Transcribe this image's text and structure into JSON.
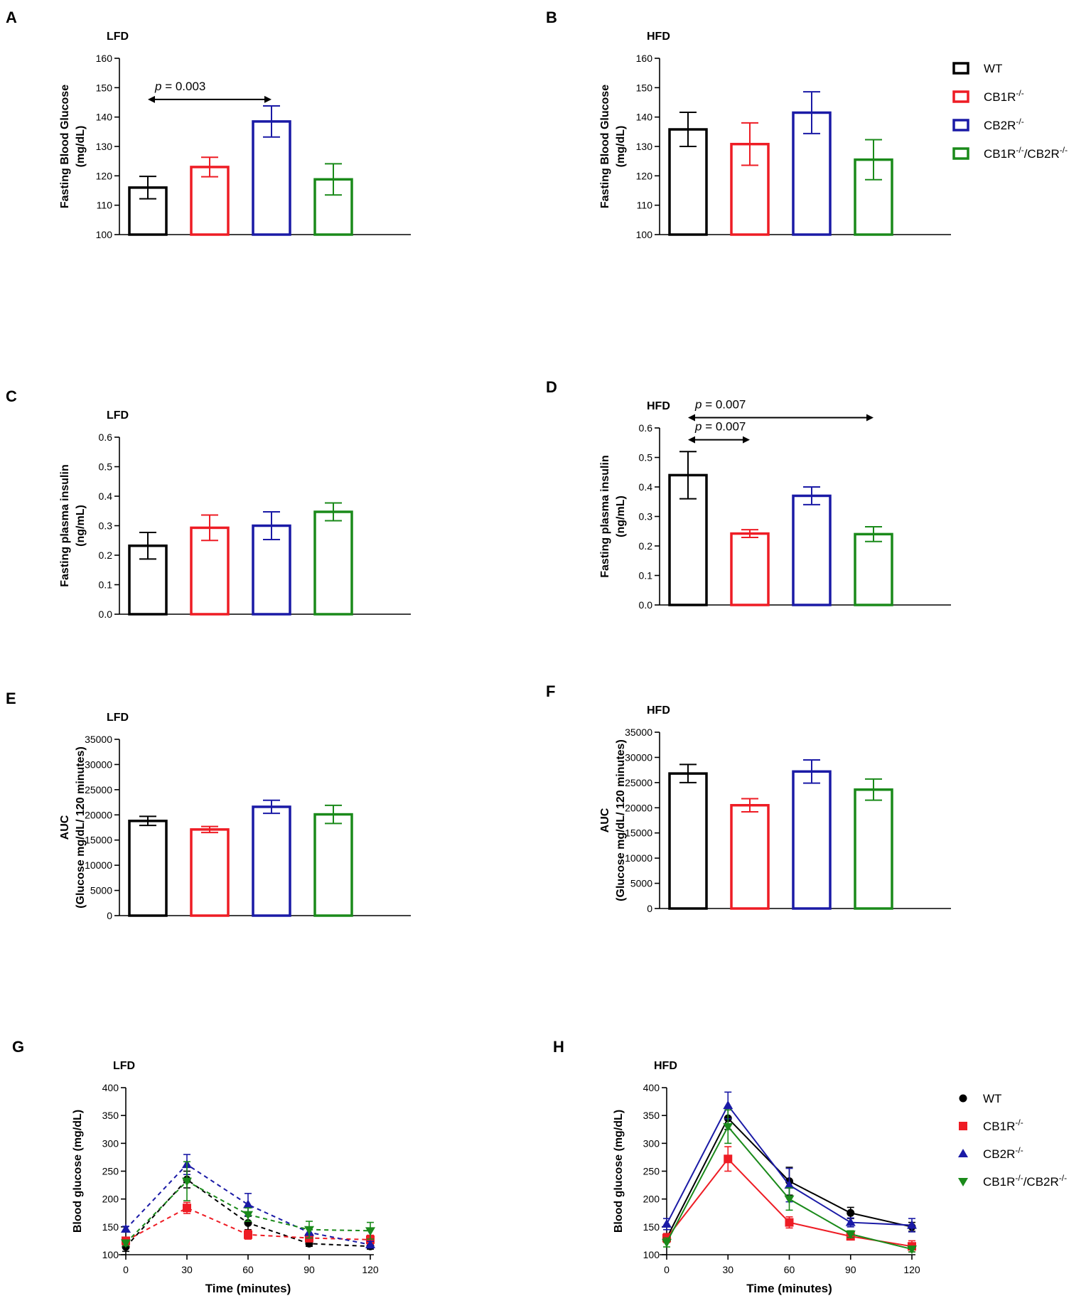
{
  "legend_bar": [
    {
      "key": "WT",
      "label": "WT",
      "sup": "",
      "label2": "",
      "sup2": "",
      "color": "#000000"
    },
    {
      "key": "CB1R",
      "label": "CB1R",
      "sup": "-/-",
      "label2": "",
      "sup2": "",
      "color": "#ee1c24"
    },
    {
      "key": "CB2R",
      "label": "CB2R",
      "sup": "-/-",
      "label2": "",
      "sup2": "",
      "color": "#1a1aa6"
    },
    {
      "key": "DKO",
      "label": "CB1R",
      "sup": "-/-",
      "label2": "/CB2R",
      "sup2": "-/-",
      "color": "#1a8a1a"
    }
  ],
  "legend_line": [
    {
      "key": "WT",
      "marker": "circle",
      "label": "WT",
      "sup": "",
      "label2": "",
      "sup2": "",
      "color": "#000000"
    },
    {
      "key": "CB1R",
      "marker": "square",
      "label": "CB1R",
      "sup": "-/-",
      "label2": "",
      "sup2": "",
      "color": "#ee1c24"
    },
    {
      "key": "CB2R",
      "marker": "triangle",
      "label": "CB2R",
      "sup": "-/-",
      "label2": "",
      "sup2": "",
      "color": "#1a1aa6"
    },
    {
      "key": "DKO",
      "marker": "triangle-down",
      "label": "CB1R",
      "sup": "-/-",
      "label2": "/CB2R",
      "sup2": "-/-",
      "color": "#1a8a1a"
    }
  ],
  "chart_data": [
    {
      "id": "A",
      "panel_letter": "A",
      "type": "bar",
      "title": "LFD",
      "ylabel": [
        "Fasting Blood Glucose",
        "(mg/dL)"
      ],
      "ylim": [
        100,
        160
      ],
      "yticks": [
        "100",
        "110",
        "120",
        "130",
        "140",
        "150",
        "160"
      ],
      "series_keys": [
        "WT",
        "CB1R",
        "CB2R",
        "DKO"
      ],
      "values": [
        116,
        123,
        138.5,
        118.8
      ],
      "errors": [
        3.8,
        3.3,
        5.3,
        5.3
      ],
      "annotations": [
        {
          "from": 0,
          "to": 2,
          "y": 146,
          "p_label": "p",
          "p_value": " = 0.003"
        }
      ]
    },
    {
      "id": "B",
      "panel_letter": "B",
      "type": "bar",
      "title": "HFD",
      "ylabel": [
        "Fasting Blood Glucose",
        "(mg/dL)"
      ],
      "ylim": [
        100,
        160
      ],
      "yticks": [
        "100",
        "110",
        "120",
        "130",
        "140",
        "150",
        "160"
      ],
      "series_keys": [
        "WT",
        "CB1R",
        "CB2R",
        "DKO"
      ],
      "values": [
        135.8,
        130.8,
        141.5,
        125.5
      ],
      "errors": [
        5.8,
        7.2,
        7.1,
        6.8
      ],
      "annotations": []
    },
    {
      "id": "C",
      "panel_letter": "C",
      "type": "bar",
      "title": "LFD",
      "ylabel": [
        "Fasting plasma insulin",
        "(ng/mL)"
      ],
      "ylim": [
        0,
        0.6
      ],
      "yticks": [
        "0.0",
        "0.1",
        "0.2",
        "0.3",
        "0.4",
        "0.5",
        "0.6"
      ],
      "series_keys": [
        "WT",
        "CB1R",
        "CB2R",
        "DKO"
      ],
      "values": [
        0.232,
        0.293,
        0.3,
        0.347
      ],
      "errors": [
        0.045,
        0.043,
        0.047,
        0.03
      ],
      "annotations": []
    },
    {
      "id": "D",
      "panel_letter": "D",
      "type": "bar",
      "title": "HFD",
      "ylabel": [
        "Fasting plasma insulin",
        "(ng/mL)"
      ],
      "ylim": [
        0,
        0.6
      ],
      "yticks": [
        "0.0",
        "0.1",
        "0.2",
        "0.3",
        "0.4",
        "0.5",
        "0.6"
      ],
      "series_keys": [
        "WT",
        "CB1R",
        "CB2R",
        "DKO"
      ],
      "values": [
        0.44,
        0.242,
        0.37,
        0.24
      ],
      "errors": [
        0.08,
        0.013,
        0.03,
        0.025
      ],
      "annotations": [
        {
          "from": 0,
          "to": 3,
          "y": 0.635,
          "p_label": "p",
          "p_value": " = 0.007"
        },
        {
          "from": 0,
          "to": 1,
          "y": 0.56,
          "p_label": "p",
          "p_value": " = 0.007"
        }
      ]
    },
    {
      "id": "E",
      "panel_letter": "E",
      "type": "bar",
      "title": "LFD",
      "ylabel": [
        "AUC",
        "(Glucose mg/dL/ 120 minutes)"
      ],
      "ylim": [
        0,
        35000
      ],
      "yticks": [
        "0",
        "5000",
        "10000",
        "15000",
        "20000",
        "25000",
        "30000",
        "35000"
      ],
      "series_keys": [
        "WT",
        "CB1R",
        "CB2R",
        "DKO"
      ],
      "values": [
        18800,
        17100,
        21600,
        20100
      ],
      "errors": [
        900,
        600,
        1300,
        1800
      ],
      "annotations": []
    },
    {
      "id": "F",
      "panel_letter": "F",
      "type": "bar",
      "title": "HFD",
      "ylabel": [
        "AUC",
        "(Glucose mg/dL/ 120 minutes)"
      ],
      "ylim": [
        0,
        35000
      ],
      "yticks": [
        "0",
        "5000",
        "10000",
        "15000",
        "20000",
        "25000",
        "30000",
        "35000"
      ],
      "series_keys": [
        "WT",
        "CB1R",
        "CB2R",
        "DKO"
      ],
      "values": [
        26800,
        20500,
        27200,
        23600
      ],
      "errors": [
        1800,
        1300,
        2300,
        2100
      ],
      "annotations": []
    },
    {
      "id": "G",
      "panel_letter": "G",
      "type": "line",
      "title": "LFD",
      "dashed": true,
      "xlabel": "Time (minutes)",
      "ylabel": [
        "Blood glucose (mg/dL)"
      ],
      "x": [
        0,
        30,
        60,
        90,
        120
      ],
      "xticks": [
        "0",
        "30",
        "60",
        "90",
        "120"
      ],
      "xlim": [
        0,
        120
      ],
      "ylim": [
        100,
        400
      ],
      "yticks": [
        "100",
        "150",
        "200",
        "250",
        "300",
        "350",
        "400"
      ],
      "series": [
        {
          "key": "WT",
          "values": [
            114,
            235,
            157,
            120,
            115
          ],
          "errors": [
            8,
            15,
            12,
            5,
            5
          ]
        },
        {
          "key": "CB1R",
          "values": [
            125,
            184,
            136,
            130,
            127
          ],
          "errors": [
            6,
            10,
            8,
            7,
            8
          ]
        },
        {
          "key": "CB2R",
          "values": [
            146,
            262,
            190,
            140,
            118
          ],
          "errors": [
            5,
            18,
            20,
            10,
            6
          ]
        },
        {
          "key": "DKO",
          "values": [
            121,
            232,
            172,
            145,
            143
          ],
          "errors": [
            5,
            35,
            12,
            15,
            15
          ]
        }
      ]
    },
    {
      "id": "H",
      "panel_letter": "H",
      "type": "line",
      "title": "HFD",
      "dashed": false,
      "xlabel": "Time (minutes)",
      "ylabel": [
        "Blood glucose (mg/dL)"
      ],
      "x": [
        0,
        30,
        60,
        90,
        120
      ],
      "xticks": [
        "0",
        "30",
        "60",
        "90",
        "120"
      ],
      "xlim": [
        0,
        120
      ],
      "ylim": [
        100,
        400
      ],
      "yticks": [
        "100",
        "150",
        "200",
        "250",
        "300",
        "350",
        "400"
      ],
      "series": [
        {
          "key": "WT",
          "values": [
            130,
            345,
            232,
            175,
            150
          ],
          "errors": [
            8,
            20,
            25,
            10,
            8
          ]
        },
        {
          "key": "CB1R",
          "values": [
            130,
            272,
            158,
            133,
            115
          ],
          "errors": [
            8,
            22,
            10,
            6,
            10
          ]
        },
        {
          "key": "CB2R",
          "values": [
            155,
            368,
            225,
            158,
            153
          ],
          "errors": [
            10,
            24,
            30,
            8,
            12
          ]
        },
        {
          "key": "DKO",
          "values": [
            122,
            330,
            200,
            137,
            110
          ],
          "errors": [
            8,
            30,
            20,
            6,
            5
          ]
        }
      ]
    }
  ]
}
